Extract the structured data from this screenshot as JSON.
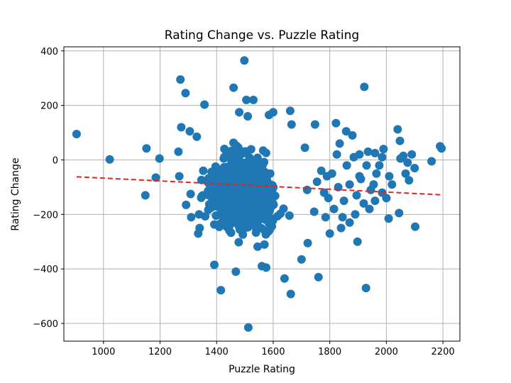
{
  "chart_data": {
    "type": "scatter",
    "title": "Rating Change vs. Puzzle Rating",
    "xlabel": "Puzzle Rating",
    "ylabel": "Rating Change",
    "xlim": [
      860,
      2260
    ],
    "ylim": [
      -665,
      415
    ],
    "xticks": [
      1000,
      1200,
      1400,
      1600,
      1800,
      2000,
      2200
    ],
    "yticks": [
      400,
      200,
      0,
      -200,
      -400,
      -600
    ],
    "ytick_labels": [
      "400",
      "200",
      "0",
      "−200",
      "−400",
      "−600"
    ],
    "grid": true,
    "colors": {
      "points": "#1f77b4",
      "trend": "#e8221c",
      "grid": "#b0b0b0"
    },
    "trend_line": {
      "style": "dashed",
      "x": [
        905,
        2195
      ],
      "y": [
        -62,
        -128
      ]
    },
    "points": [
      [
        905,
        95
      ],
      [
        1022,
        2
      ],
      [
        1148,
        -130
      ],
      [
        1152,
        42
      ],
      [
        1185,
        -65
      ],
      [
        1198,
        5
      ],
      [
        1265,
        30
      ],
      [
        1268,
        -60
      ],
      [
        1272,
        295
      ],
      [
        1275,
        120
      ],
      [
        1290,
        245
      ],
      [
        1292,
        -165
      ],
      [
        1305,
        105
      ],
      [
        1308,
        -125
      ],
      [
        1310,
        -210
      ],
      [
        1330,
        85
      ],
      [
        1335,
        -270
      ],
      [
        1338,
        -200
      ],
      [
        1340,
        -250
      ],
      [
        1357,
        203
      ],
      [
        1392,
        -385
      ],
      [
        1415,
        -478
      ],
      [
        1460,
        265
      ],
      [
        1468,
        -410
      ],
      [
        1480,
        175
      ],
      [
        1498,
        365
      ],
      [
        1505,
        220
      ],
      [
        1510,
        160
      ],
      [
        1512,
        -615
      ],
      [
        1530,
        220
      ],
      [
        1545,
        -318
      ],
      [
        1560,
        -390
      ],
      [
        1575,
        -395
      ],
      [
        1585,
        165
      ],
      [
        1600,
        175
      ],
      [
        1640,
        -435
      ],
      [
        1660,
        180
      ],
      [
        1662,
        -492
      ],
      [
        1665,
        130
      ],
      [
        1700,
        -365
      ],
      [
        1712,
        45
      ],
      [
        1722,
        -305
      ],
      [
        1748,
        130
      ],
      [
        1760,
        -430
      ],
      [
        1785,
        -210
      ],
      [
        1800,
        -270
      ],
      [
        1822,
        135
      ],
      [
        1825,
        20
      ],
      [
        1840,
        -250
      ],
      [
        1858,
        105
      ],
      [
        1880,
        90
      ],
      [
        1885,
        10
      ],
      [
        1898,
        -300
      ],
      [
        1905,
        20
      ],
      [
        1922,
        268
      ],
      [
        1928,
        -470
      ],
      [
        1935,
        30
      ],
      [
        1940,
        -180
      ],
      [
        1960,
        25
      ],
      [
        1965,
        -50
      ],
      [
        1985,
        -120
      ],
      [
        1990,
        40
      ],
      [
        2000,
        -140
      ],
      [
        2008,
        -215
      ],
      [
        2020,
        -90
      ],
      [
        2040,
        112
      ],
      [
        2045,
        -195
      ],
      [
        2048,
        70
      ],
      [
        2060,
        15
      ],
      [
        2068,
        -50
      ],
      [
        2080,
        -75
      ],
      [
        2090,
        20
      ],
      [
        2100,
        -30
      ],
      [
        2102,
        -245
      ],
      [
        2160,
        -5
      ],
      [
        2190,
        50
      ],
      [
        2195,
        42
      ],
      [
        1720,
        -110
      ],
      [
        1755,
        -80
      ],
      [
        1770,
        -40
      ],
      [
        1790,
        -60
      ],
      [
        1830,
        -100
      ],
      [
        1850,
        -150
      ],
      [
        1870,
        -90
      ],
      [
        1890,
        -200
      ],
      [
        1910,
        -70
      ],
      [
        1945,
        -110
      ],
      [
        1975,
        -20
      ],
      [
        1815,
        -180
      ],
      [
        1795,
        -140
      ],
      [
        1860,
        -20
      ],
      [
        1895,
        -130
      ],
      [
        1920,
        -160
      ],
      [
        1955,
        -90
      ],
      [
        1835,
        60
      ],
      [
        1870,
        -230
      ],
      [
        1905,
        -60
      ],
      [
        1930,
        -20
      ],
      [
        1960,
        -150
      ],
      [
        1985,
        10
      ],
      [
        2010,
        -60
      ],
      [
        2050,
        5
      ],
      [
        2075,
        -10
      ],
      [
        1745,
        -190
      ],
      [
        1780,
        -120
      ],
      [
        1808,
        -50
      ],
      [
        1845,
        -210
      ]
    ]
  }
}
